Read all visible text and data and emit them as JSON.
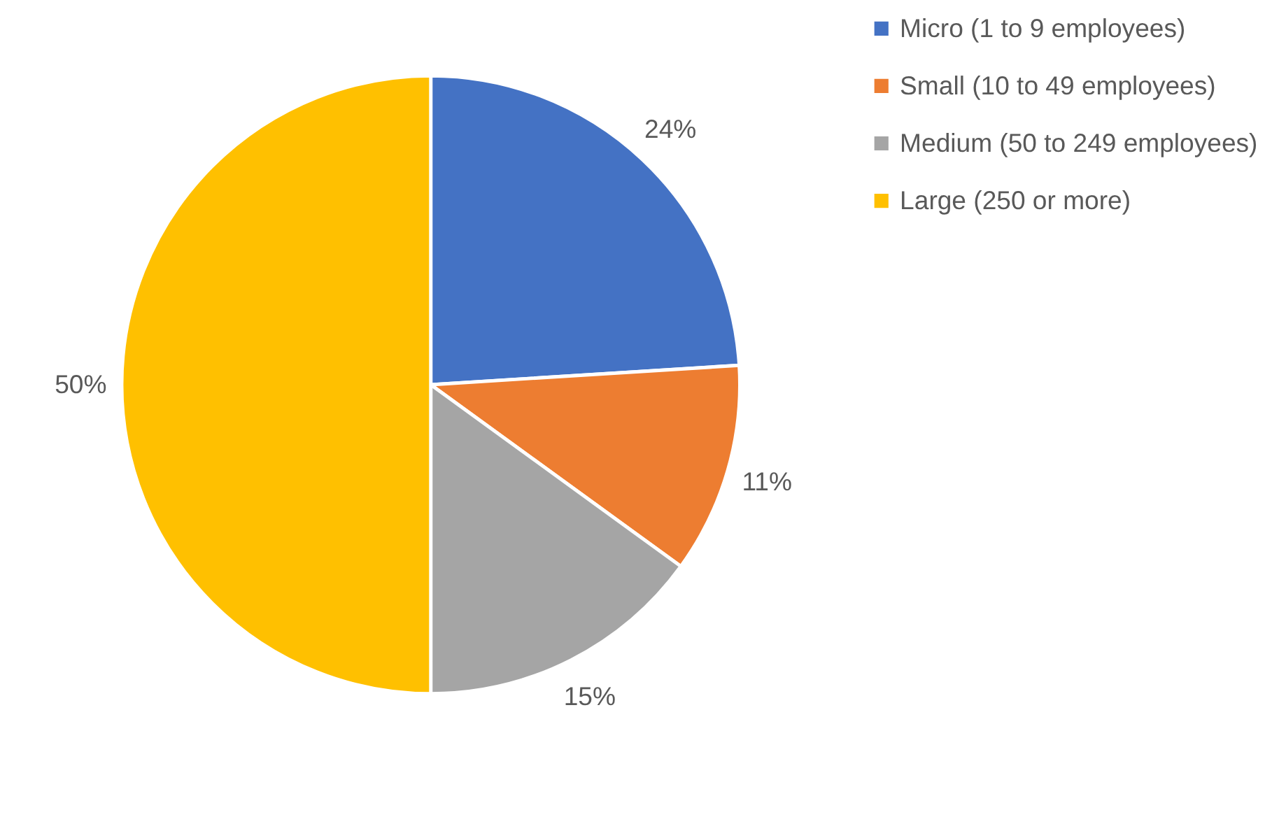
{
  "chart_data": {
    "type": "pie",
    "categories": [
      "Micro (1 to 9 employees)",
      "Small (10 to 49 employees)",
      "Medium (50 to 249 employees)",
      "Large (250 or more)"
    ],
    "values": [
      24,
      11,
      15,
      50
    ],
    "colors": [
      "#4472c4",
      "#ed7d31",
      "#a5a5a5",
      "#ffc000"
    ],
    "value_labels": [
      "24%",
      "11%",
      "15%",
      "50%"
    ],
    "legend": "right"
  }
}
